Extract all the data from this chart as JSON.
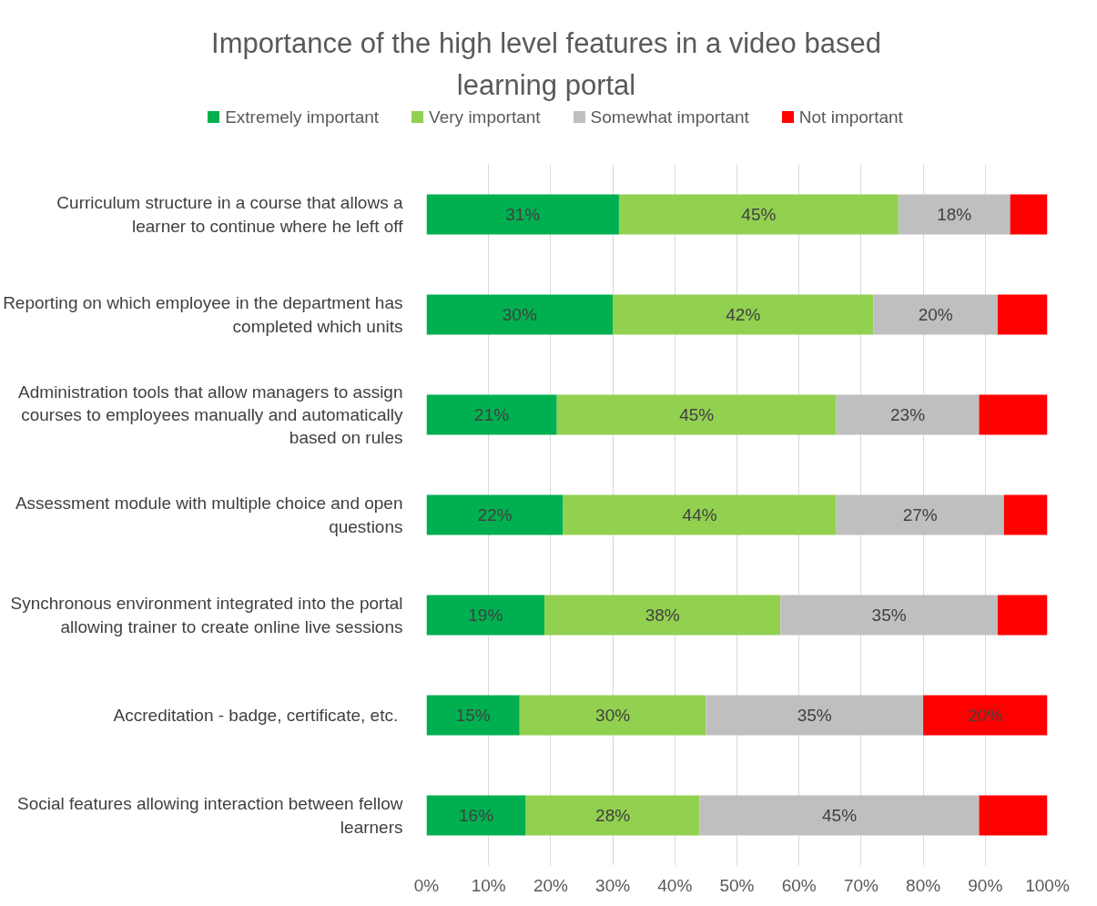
{
  "chart_data": {
    "type": "bar",
    "orientation": "horizontal",
    "stacked": true,
    "title": "Importance of the high level features in a video based learning portal",
    "categories": [
      "Curriculum structure in a course that allows a learner to continue where he left off",
      "Reporting on which employee in the department has completed which units",
      "Administration tools that allow managers to assign courses to employees manually and automatically based on rules",
      "Assessment module with multiple choice and open questions",
      "Synchronous environment integrated into the portal allowing trainer to create online live sessions",
      "Accreditation  - badge, certificate, etc.",
      "Social features allowing interaction between fellow learners"
    ],
    "series": [
      {
        "name": "Extremely important",
        "color": "#00b050",
        "values": [
          31,
          30,
          21,
          22,
          19,
          15,
          16
        ],
        "value_labels": [
          "31%",
          "30%",
          "21%",
          "22%",
          "19%",
          "15%",
          "16%"
        ]
      },
      {
        "name": "Very important",
        "color": "#92d050",
        "values": [
          45,
          42,
          45,
          44,
          38,
          30,
          28
        ],
        "value_labels": [
          "45%",
          "42%",
          "45%",
          "44%",
          "38%",
          "30%",
          "28%"
        ]
      },
      {
        "name": "Somewhat important",
        "color": "#bfbfbf",
        "values": [
          18,
          20,
          23,
          27,
          35,
          35,
          45
        ],
        "value_labels": [
          "18%",
          "20%",
          "23%",
          "27%",
          "35%",
          "35%",
          "45%"
        ]
      },
      {
        "name": "Not important",
        "color": "#ff0000",
        "values": [
          6,
          8,
          11,
          7,
          8,
          20,
          11
        ],
        "value_labels": [
          null,
          null,
          null,
          null,
          null,
          "20%",
          null
        ]
      }
    ],
    "xlim": [
      0,
      100
    ],
    "xticks": [
      {
        "value": 0,
        "label": "0%"
      },
      {
        "value": 10,
        "label": "10%"
      },
      {
        "value": 20,
        "label": "20%"
      },
      {
        "value": 30,
        "label": "30%"
      },
      {
        "value": 40,
        "label": "40%"
      },
      {
        "value": 50,
        "label": "50%"
      },
      {
        "value": 60,
        "label": "60%"
      },
      {
        "value": 70,
        "label": "70%"
      },
      {
        "value": 80,
        "label": "80%"
      },
      {
        "value": 90,
        "label": "90%"
      },
      {
        "value": 100,
        "label": "100%"
      }
    ],
    "grid": "x",
    "legend": "top"
  }
}
